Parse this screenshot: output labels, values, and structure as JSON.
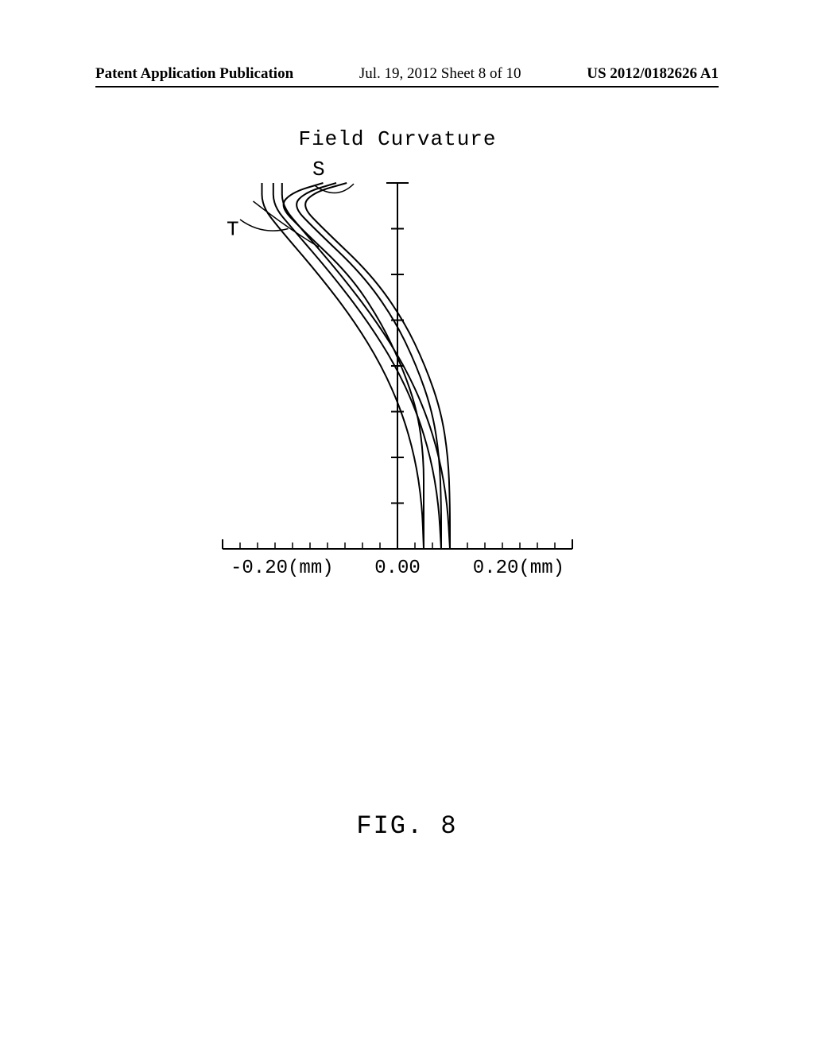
{
  "header": {
    "left": "Patent Application Publication",
    "center": "Jul. 19, 2012  Sheet 8 of 10",
    "right": "US 2012/0182626 A1"
  },
  "chart": {
    "type": "line",
    "title": "Field Curvature",
    "x_axis": {
      "min": -0.2,
      "max": 0.2,
      "labels": [
        "-0.20(mm)",
        "0.00",
        "0.20(mm)"
      ],
      "tick_count": 21
    },
    "y_axis": {
      "min": 0,
      "max": 8,
      "tick_count": 8
    },
    "series_labels": {
      "S": "S",
      "T": "T"
    },
    "curves_S": [
      [
        [
          0.03,
          0
        ],
        [
          0.03,
          1
        ],
        [
          0.03,
          2
        ],
        [
          0.023,
          3
        ],
        [
          0.005,
          4
        ],
        [
          -0.02,
          5
        ],
        [
          -0.055,
          6
        ],
        [
          -0.11,
          7
        ],
        [
          -0.135,
          7.5
        ],
        [
          -0.12,
          7.8
        ],
        [
          -0.085,
          8
        ]
      ],
      [
        [
          0.05,
          0
        ],
        [
          0.05,
          1
        ],
        [
          0.048,
          2
        ],
        [
          0.04,
          3
        ],
        [
          0.022,
          4
        ],
        [
          -0.003,
          5
        ],
        [
          -0.04,
          6
        ],
        [
          -0.095,
          7
        ],
        [
          -0.12,
          7.5
        ],
        [
          -0.105,
          7.8
        ],
        [
          -0.07,
          8
        ]
      ],
      [
        [
          0.06,
          0
        ],
        [
          0.06,
          1
        ],
        [
          0.058,
          2
        ],
        [
          0.05,
          3
        ],
        [
          0.032,
          4
        ],
        [
          0.007,
          5
        ],
        [
          -0.03,
          6
        ],
        [
          -0.085,
          7
        ],
        [
          -0.11,
          7.5
        ],
        [
          -0.095,
          7.8
        ],
        [
          -0.058,
          8
        ]
      ]
    ],
    "curves_T": [
      [
        [
          0.03,
          0
        ],
        [
          0.028,
          1
        ],
        [
          0.02,
          2
        ],
        [
          0.005,
          3
        ],
        [
          -0.018,
          4
        ],
        [
          -0.05,
          5
        ],
        [
          -0.09,
          6
        ],
        [
          -0.135,
          7
        ],
        [
          -0.155,
          7.5
        ],
        [
          -0.155,
          8
        ]
      ],
      [
        [
          0.05,
          0
        ],
        [
          0.047,
          1
        ],
        [
          0.038,
          2
        ],
        [
          0.022,
          3
        ],
        [
          -0.002,
          4
        ],
        [
          -0.035,
          5
        ],
        [
          -0.075,
          6
        ],
        [
          -0.12,
          7
        ],
        [
          -0.142,
          7.5
        ],
        [
          -0.142,
          8
        ]
      ],
      [
        [
          0.06,
          0
        ],
        [
          0.057,
          1
        ],
        [
          0.048,
          2
        ],
        [
          0.032,
          3
        ],
        [
          0.008,
          4
        ],
        [
          -0.025,
          5
        ],
        [
          -0.065,
          6
        ],
        [
          -0.11,
          7
        ],
        [
          -0.132,
          7.5
        ],
        [
          -0.132,
          8
        ]
      ]
    ],
    "stroke_color": "#000000",
    "stroke_width": 2,
    "background_color": "#ffffff"
  },
  "figure_label": "FIG. 8"
}
